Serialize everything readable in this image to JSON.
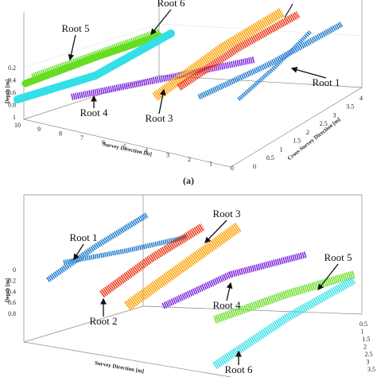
{
  "panels": [
    {
      "label": "(a)",
      "depth": {
        "title": "Depth [m]",
        "ticks": [
          "0.2",
          "0.4",
          "0.6",
          "0.8",
          "1"
        ]
      },
      "survey": {
        "title": "Survey Direction [m]",
        "ticks": [
          "10",
          "9",
          "8",
          "7",
          "6",
          "5",
          "4",
          "3",
          "2",
          "1",
          "0"
        ]
      },
      "cross": {
        "title": "Cross-Survey Direction [m]",
        "ticks": [
          "0",
          "0.5",
          "1",
          "1.5",
          "2",
          "2.5",
          "3",
          "3.5",
          "4"
        ]
      },
      "roots": [
        "Root 5",
        "Root 6",
        "Root 4",
        "Root 3",
        "Root 1"
      ]
    },
    {
      "depth": {
        "title": "Depth [m]",
        "ticks": [
          "0",
          "0.2",
          "0.4",
          "0.6",
          "0.8"
        ]
      },
      "survey": {
        "title": "Survey Direction [m]"
      },
      "cross": {
        "ticks": [
          "0.5",
          "1",
          "1.5",
          "2",
          "2.5",
          "3",
          "3.5"
        ]
      },
      "roots": [
        "Root 1",
        "Root 3",
        "Root 2",
        "Root 4",
        "Root 5",
        "Root 6"
      ]
    }
  ]
}
